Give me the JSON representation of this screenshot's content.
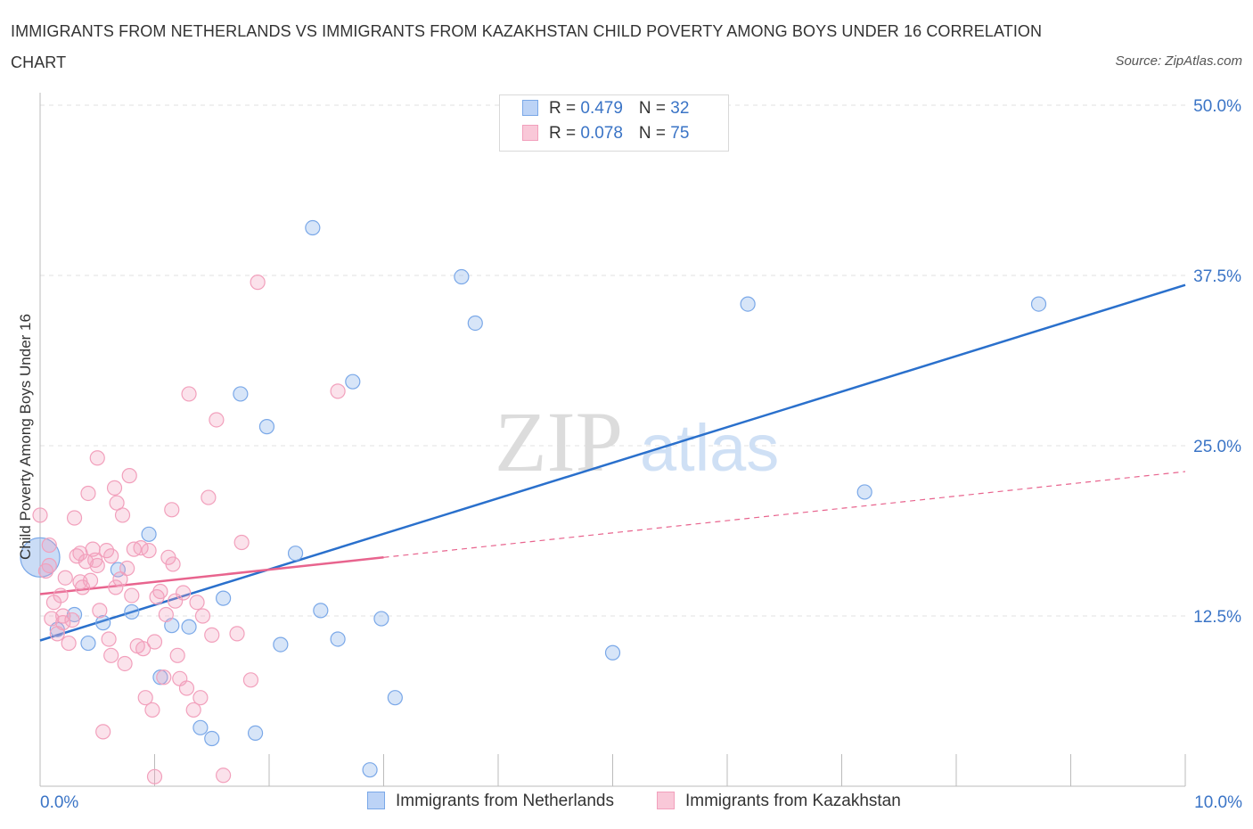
{
  "title": "IMMIGRANTS FROM NETHERLANDS VS IMMIGRANTS FROM KAZAKHSTAN CHILD POVERTY AMONG BOYS UNDER 16 CORRELATION CHART",
  "source": "Source: ZipAtlas.com",
  "watermark": {
    "zip": "ZIP",
    "atlas": "atlas"
  },
  "legend": {
    "series1": {
      "r_label": "R = ",
      "r_value": "0.479",
      "n_label": "N = ",
      "n_value": "32"
    },
    "series2": {
      "r_label": "R = ",
      "r_value": "0.078",
      "n_label": "N = ",
      "n_value": "75"
    }
  },
  "x_axis": {
    "min_label": "0.0%",
    "max_label": "10.0%"
  },
  "chart_data": {
    "type": "scatter",
    "ylabel": "Child Poverty Among Boys Under 16",
    "xlim": [
      0,
      10
    ],
    "ylim": [
      0,
      50
    ],
    "y_ticks": [
      {
        "value": 12.5,
        "label": "12.5%"
      },
      {
        "value": 25,
        "label": "25.0%"
      },
      {
        "value": 37.5,
        "label": "37.5%"
      },
      {
        "value": 50,
        "label": "50.0%"
      }
    ],
    "grid": true,
    "legend_position": "top-center",
    "series": [
      {
        "name": "Immigrants from Netherlands",
        "color": "#7aa8e8",
        "line_color": "#2a70cc",
        "trend": {
          "x": [
            0,
            10
          ],
          "y": [
            10.7,
            36.8
          ],
          "dashed_x_from": null
        },
        "points": [
          {
            "x": 0.0,
            "y": 16.8,
            "big": true
          },
          {
            "x": 0.15,
            "y": 11.5
          },
          {
            "x": 0.3,
            "y": 12.6
          },
          {
            "x": 0.42,
            "y": 10.5
          },
          {
            "x": 0.55,
            "y": 12.0
          },
          {
            "x": 0.68,
            "y": 15.9
          },
          {
            "x": 0.8,
            "y": 12.8
          },
          {
            "x": 0.95,
            "y": 18.5
          },
          {
            "x": 1.05,
            "y": 8.0
          },
          {
            "x": 1.15,
            "y": 11.8
          },
          {
            "x": 1.3,
            "y": 11.7
          },
          {
            "x": 1.4,
            "y": 4.3
          },
          {
            "x": 1.5,
            "y": 3.5
          },
          {
            "x": 1.6,
            "y": 13.8
          },
          {
            "x": 1.75,
            "y": 28.8
          },
          {
            "x": 1.88,
            "y": 3.9
          },
          {
            "x": 1.98,
            "y": 26.4
          },
          {
            "x": 2.1,
            "y": 10.4
          },
          {
            "x": 2.23,
            "y": 17.1
          },
          {
            "x": 2.38,
            "y": 41.0
          },
          {
            "x": 2.45,
            "y": 12.9
          },
          {
            "x": 2.6,
            "y": 10.8
          },
          {
            "x": 2.73,
            "y": 29.7
          },
          {
            "x": 2.88,
            "y": 1.2
          },
          {
            "x": 2.98,
            "y": 12.3
          },
          {
            "x": 3.1,
            "y": 6.5
          },
          {
            "x": 3.68,
            "y": 37.4
          },
          {
            "x": 3.8,
            "y": 34.0
          },
          {
            "x": 5.0,
            "y": 9.8
          },
          {
            "x": 6.18,
            "y": 35.4
          },
          {
            "x": 7.2,
            "y": 21.6
          },
          {
            "x": 8.72,
            "y": 35.4
          }
        ]
      },
      {
        "name": "Immigrants from Kazakhstan",
        "color": "#f2a0bc",
        "line_color": "#e8648e",
        "trend": {
          "x": [
            0,
            10
          ],
          "y": [
            14.1,
            23.1
          ],
          "dashed_x_from": 3.0
        },
        "points": [
          {
            "x": 0.0,
            "y": 19.9
          },
          {
            "x": 0.05,
            "y": 15.8
          },
          {
            "x": 0.08,
            "y": 17.7
          },
          {
            "x": 0.1,
            "y": 12.3
          },
          {
            "x": 0.12,
            "y": 13.5
          },
          {
            "x": 0.15,
            "y": 11.2
          },
          {
            "x": 0.18,
            "y": 14.0
          },
          {
            "x": 0.2,
            "y": 12.5
          },
          {
            "x": 0.22,
            "y": 15.3
          },
          {
            "x": 0.25,
            "y": 10.5
          },
          {
            "x": 0.28,
            "y": 12.2
          },
          {
            "x": 0.3,
            "y": 19.7
          },
          {
            "x": 0.32,
            "y": 16.9
          },
          {
            "x": 0.35,
            "y": 17.1
          },
          {
            "x": 0.37,
            "y": 14.6
          },
          {
            "x": 0.4,
            "y": 16.5
          },
          {
            "x": 0.42,
            "y": 21.5
          },
          {
            "x": 0.44,
            "y": 15.1
          },
          {
            "x": 0.46,
            "y": 17.4
          },
          {
            "x": 0.48,
            "y": 16.6
          },
          {
            "x": 0.5,
            "y": 24.1
          },
          {
            "x": 0.52,
            "y": 12.9
          },
          {
            "x": 0.55,
            "y": 4.0
          },
          {
            "x": 0.58,
            "y": 17.3
          },
          {
            "x": 0.6,
            "y": 10.8
          },
          {
            "x": 0.62,
            "y": 9.6
          },
          {
            "x": 0.62,
            "y": 16.9
          },
          {
            "x": 0.65,
            "y": 21.9
          },
          {
            "x": 0.67,
            "y": 20.8
          },
          {
            "x": 0.7,
            "y": 15.2
          },
          {
            "x": 0.72,
            "y": 19.9
          },
          {
            "x": 0.74,
            "y": 9.0
          },
          {
            "x": 0.76,
            "y": 16.0
          },
          {
            "x": 0.78,
            "y": 22.8
          },
          {
            "x": 0.8,
            "y": 14.0
          },
          {
            "x": 0.82,
            "y": 17.4
          },
          {
            "x": 0.85,
            "y": 10.3
          },
          {
            "x": 0.88,
            "y": 17.5
          },
          {
            "x": 0.9,
            "y": 10.1
          },
          {
            "x": 0.92,
            "y": 6.5
          },
          {
            "x": 0.95,
            "y": 17.3
          },
          {
            "x": 0.98,
            "y": 5.6
          },
          {
            "x": 1.0,
            "y": 10.6
          },
          {
            "x": 1.02,
            "y": 13.9
          },
          {
            "x": 1.05,
            "y": 14.3
          },
          {
            "x": 1.08,
            "y": 8.0
          },
          {
            "x": 1.1,
            "y": 12.6
          },
          {
            "x": 1.12,
            "y": 16.8
          },
          {
            "x": 1.15,
            "y": 20.3
          },
          {
            "x": 1.18,
            "y": 13.6
          },
          {
            "x": 1.2,
            "y": 9.6
          },
          {
            "x": 1.22,
            "y": 7.9
          },
          {
            "x": 1.25,
            "y": 14.2
          },
          {
            "x": 1.28,
            "y": 7.2
          },
          {
            "x": 1.3,
            "y": 28.8
          },
          {
            "x": 1.34,
            "y": 5.6
          },
          {
            "x": 1.37,
            "y": 13.5
          },
          {
            "x": 1.4,
            "y": 6.5
          },
          {
            "x": 1.42,
            "y": 12.5
          },
          {
            "x": 1.47,
            "y": 21.2
          },
          {
            "x": 1.5,
            "y": 11.1
          },
          {
            "x": 1.54,
            "y": 26.9
          },
          {
            "x": 1.6,
            "y": 0.8
          },
          {
            "x": 1.72,
            "y": 11.2
          },
          {
            "x": 1.76,
            "y": 17.9
          },
          {
            "x": 1.84,
            "y": 7.8
          },
          {
            "x": 1.9,
            "y": 37.0
          },
          {
            "x": 2.6,
            "y": 29.0
          },
          {
            "x": 1.0,
            "y": 0.7
          },
          {
            "x": 0.2,
            "y": 12.0
          },
          {
            "x": 0.5,
            "y": 16.2
          },
          {
            "x": 0.66,
            "y": 14.6
          },
          {
            "x": 1.16,
            "y": 16.3
          },
          {
            "x": 0.35,
            "y": 15.0
          },
          {
            "x": 0.08,
            "y": 16.2
          }
        ]
      }
    ]
  }
}
